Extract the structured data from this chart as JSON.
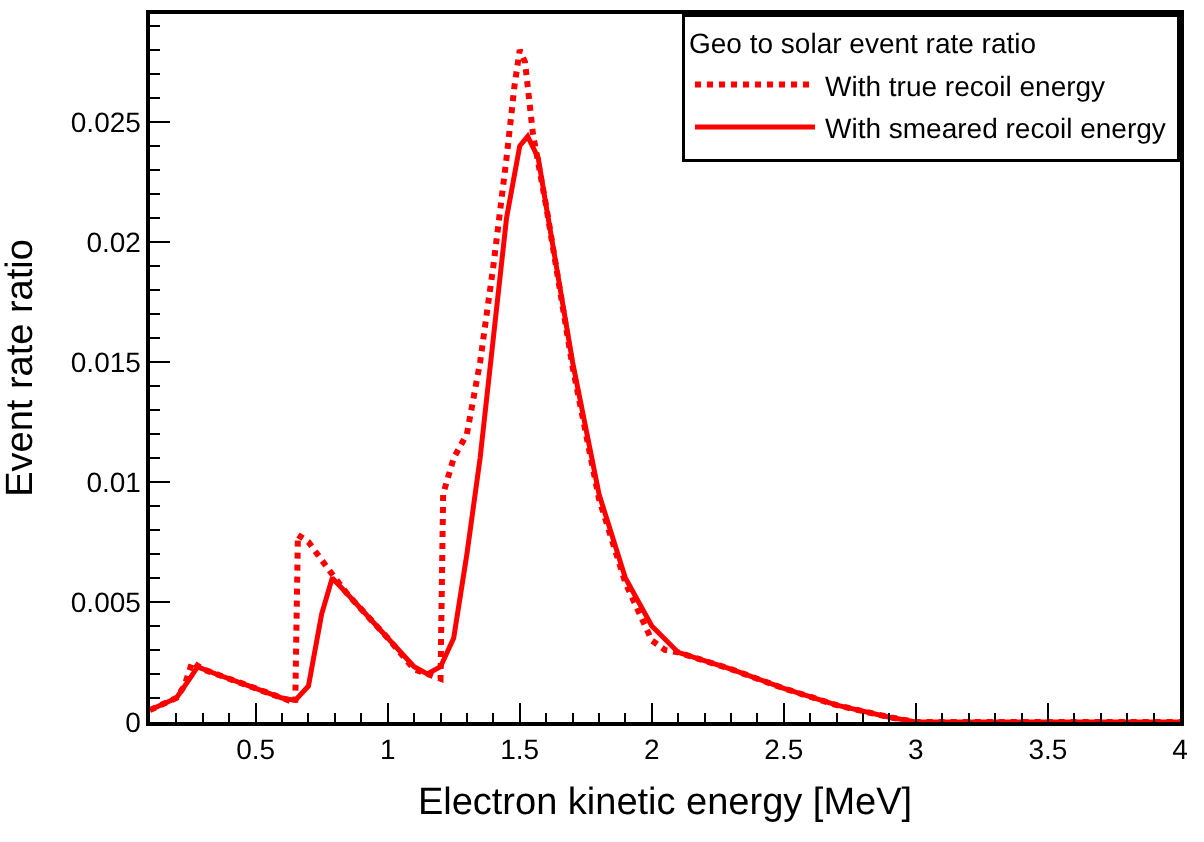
{
  "chart_data": {
    "type": "line",
    "xlabel": "Electron kinetic energy [MeV]",
    "ylabel": "Event rate ratio",
    "legend_title": "Geo to solar event rate ratio",
    "xlim": [
      0.1,
      4
    ],
    "xticks": [
      0.5,
      1,
      1.5,
      2,
      2.5,
      3,
      3.5,
      4
    ],
    "ylim": [
      0,
      0.0295
    ],
    "yticks": [
      0,
      0.005,
      0.01,
      0.015,
      0.02,
      0.025
    ],
    "legend": "top right",
    "marker": "none",
    "series": [
      {
        "name": "With true recoil energy",
        "color": "#ff0000",
        "line_style": "dotted",
        "x": [
          0.1,
          0.2,
          0.23,
          0.26,
          0.3,
          0.5,
          0.65,
          0.66,
          0.7,
          0.78,
          0.85,
          1.0,
          1.1,
          1.2,
          1.21,
          1.25,
          1.3,
          1.35,
          1.4,
          1.45,
          1.48,
          1.5,
          1.52,
          1.55,
          1.6,
          1.7,
          1.8,
          1.9,
          2.0,
          2.05,
          2.1,
          2.3,
          2.5,
          2.7,
          2.9,
          3.0,
          4.0
        ],
        "values": [
          0.0005,
          0.001,
          0.0015,
          0.0025,
          0.0022,
          0.0014,
          0.0008,
          0.0078,
          0.0075,
          0.0063,
          0.0053,
          0.0035,
          0.0022,
          0.0018,
          0.0095,
          0.011,
          0.012,
          0.015,
          0.019,
          0.0235,
          0.0265,
          0.028,
          0.0275,
          0.0245,
          0.0215,
          0.0148,
          0.0093,
          0.0058,
          0.0034,
          0.003,
          0.0029,
          0.0022,
          0.0014,
          0.0007,
          0.0002,
          0,
          0
        ]
      },
      {
        "name": "With smeared recoil energy",
        "color": "#ff0000",
        "line_style": "solid",
        "x": [
          0.1,
          0.2,
          0.25,
          0.28,
          0.35,
          0.5,
          0.6,
          0.65,
          0.7,
          0.75,
          0.79,
          0.85,
          1.0,
          1.1,
          1.15,
          1.2,
          1.25,
          1.3,
          1.35,
          1.4,
          1.45,
          1.5,
          1.53,
          1.57,
          1.6,
          1.7,
          1.8,
          1.9,
          2.0,
          2.1,
          2.3,
          2.5,
          2.7,
          2.9,
          3.0,
          4.0
        ],
        "values": [
          0.0005,
          0.001,
          0.0018,
          0.0023,
          0.002,
          0.0014,
          0.001,
          0.0009,
          0.0015,
          0.0045,
          0.006,
          0.0053,
          0.0035,
          0.0023,
          0.002,
          0.0023,
          0.0035,
          0.007,
          0.011,
          0.016,
          0.021,
          0.024,
          0.0244,
          0.0235,
          0.0215,
          0.015,
          0.0095,
          0.006,
          0.004,
          0.0029,
          0.0022,
          0.0014,
          0.0007,
          0.0002,
          0,
          0
        ]
      }
    ]
  }
}
